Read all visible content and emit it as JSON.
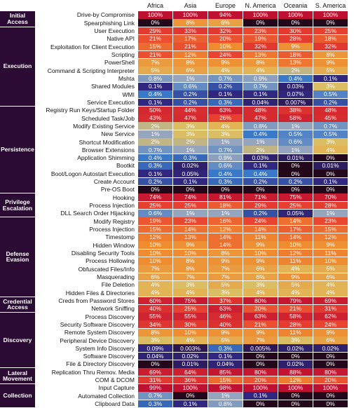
{
  "columns": [
    "Africa",
    "Asia",
    "Europe",
    "N. America",
    "Oceania",
    "S. America"
  ],
  "groups": [
    {
      "tactic": "Initial Access",
      "rows": [
        {
          "technique": "Drive-by Compromise",
          "values": [
            "100%",
            "100%",
            "94%",
            "100%",
            "100%",
            "100%"
          ]
        },
        {
          "technique": "Spearphishing Link",
          "values": [
            "0%",
            "8%",
            "6%",
            "0%",
            "0%",
            "0%"
          ]
        }
      ]
    },
    {
      "tactic": "Execution",
      "rows": [
        {
          "technique": "User Execution",
          "values": [
            "29%",
            "33%",
            "32%",
            "23%",
            "30%",
            "25%"
          ]
        },
        {
          "technique": "Native API",
          "values": [
            "21%",
            "17%",
            "20%",
            "19%",
            "28%",
            "18%"
          ]
        },
        {
          "technique": "Exploitation for Client Execution",
          "values": [
            "15%",
            "21%",
            "10%",
            "32%",
            "9%",
            "32%"
          ]
        },
        {
          "technique": "Scripting",
          "values": [
            "21%",
            "12%",
            "24%",
            "13%",
            "18%",
            "8%"
          ]
        },
        {
          "technique": "PowerShell",
          "values": [
            "7%",
            "8%",
            "9%",
            "8%",
            "13%",
            "9%"
          ]
        },
        {
          "technique": "Command & Scripting Interpreter",
          "values": [
            "5%",
            "6%",
            "4%",
            "4%",
            "2%",
            "5%"
          ]
        },
        {
          "technique": "Mshta",
          "values": [
            "0.8%",
            "1%",
            "0.7%",
            "0.9%",
            "0.4%",
            "0.1%"
          ]
        },
        {
          "technique": "Shared Modules",
          "values": [
            "0.1%",
            "0.6%",
            "0.2%",
            "0.7%",
            "0.03%",
            "3%"
          ]
        },
        {
          "technique": "WMI",
          "values": [
            "0.4%",
            "0.2%",
            "0.1%",
            "0.1%",
            "0.07%",
            "0.5%"
          ]
        },
        {
          "technique": "Service Execution",
          "values": [
            "0.1%",
            "0.2%",
            "0.3%",
            "0.04%",
            "0.007%",
            "0.2%"
          ]
        }
      ]
    },
    {
      "tactic": "Persistence",
      "rows": [
        {
          "technique": "Registry Run Keys/Startup Folder",
          "values": [
            "50%",
            "44%",
            "63%",
            "48%",
            "38%",
            "48%"
          ]
        },
        {
          "technique": "Scheduled Task/Job",
          "values": [
            "43%",
            "47%",
            "26%",
            "47%",
            "58%",
            "45%"
          ]
        },
        {
          "technique": "Modify Existing Service",
          "values": [
            "2%",
            "3%",
            "4%",
            "0.8%",
            "1%",
            "0.7%"
          ]
        },
        {
          "technique": "New Service",
          "values": [
            "1%",
            "3%",
            "3%",
            "0.4%",
            "0.5%",
            "0.5%"
          ]
        },
        {
          "technique": "Shortcut Modification",
          "values": [
            "2%",
            "2%",
            "1%",
            "1%",
            "0.6%",
            "3%"
          ]
        },
        {
          "technique": "Browser Extensions",
          "values": [
            "0.7%",
            "1%",
            "0.7%",
            "2%",
            "1%",
            "4%"
          ]
        },
        {
          "technique": "Application Shimming",
          "values": [
            "0.4%",
            "0.3%",
            "0.9%",
            "0.03%",
            "0.01%",
            "0%"
          ]
        },
        {
          "technique": "Bootkit",
          "values": [
            "0.3%",
            "0.02%",
            "0.6%",
            "0.1%",
            "0%",
            "0.01%"
          ]
        },
        {
          "technique": "Boot/Logon Autostart Execution",
          "values": [
            "0.1%",
            "0.05%",
            "0.4%",
            "0.4%",
            "0%",
            "0%"
          ]
        },
        {
          "technique": "Create Account",
          "values": [
            "0.2%",
            "0.1%",
            "0.3%",
            "0.2%",
            "0.2%",
            "0.1%"
          ]
        },
        {
          "technique": "Pre-OS Boot",
          "values": [
            "0%",
            "0%",
            "0%",
            "0%",
            "0%",
            "0%"
          ]
        }
      ]
    },
    {
      "tactic": "Privilege Escalation",
      "rows": [
        {
          "technique": "Hooking",
          "values": [
            "74%",
            "74%",
            "81%",
            "71%",
            "75%",
            "70%"
          ]
        },
        {
          "technique": "Process Injection",
          "values": [
            "25%",
            "25%",
            "18%",
            "29%",
            "25%",
            "28%"
          ]
        },
        {
          "technique": "DLL Search Order Hijacking",
          "values": [
            "0.6%",
            "1%",
            "1%",
            "0.2%",
            "0.05%",
            "1%"
          ]
        }
      ]
    },
    {
      "tactic": "Defense Evasion",
      "rows": [
        {
          "technique": "Modify Registry",
          "values": [
            "19%",
            "23%",
            "16%",
            "24%",
            "14%",
            "23%"
          ]
        },
        {
          "technique": "Process Injection",
          "values": [
            "15%",
            "14%",
            "12%",
            "14%",
            "17%",
            "15%"
          ]
        },
        {
          "technique": "Timestomp",
          "values": [
            "12%",
            "13%",
            "14%",
            "11%",
            "14%",
            "12%"
          ]
        },
        {
          "technique": "Hidden Window",
          "values": [
            "10%",
            "9%",
            "14%",
            "9%",
            "10%",
            "9%"
          ]
        },
        {
          "technique": "Disabling Security Tools",
          "values": [
            "10%",
            "10%",
            "8%",
            "10%",
            "12%",
            "11%"
          ]
        },
        {
          "technique": "Process Hollowing",
          "values": [
            "10%",
            "8%",
            "9%",
            "9%",
            "11%",
            "10%"
          ]
        },
        {
          "technique": "Obfuscated Files/Info",
          "values": [
            "7%",
            "8%",
            "7%",
            "6%",
            "4%",
            "5%"
          ]
        },
        {
          "technique": "Masquerading",
          "values": [
            "6%",
            "7%",
            "7%",
            "6%",
            "9%",
            "6%"
          ]
        },
        {
          "technique": "File Deletion",
          "values": [
            "4%",
            "3%",
            "5%",
            "3%",
            "5%",
            "4%"
          ]
        },
        {
          "technique": "Hidden Files & Directories",
          "values": [
            "4%",
            "4%",
            "3%",
            "4%",
            "4%",
            "4%"
          ]
        }
      ]
    },
    {
      "tactic": "Credential Access",
      "rows": [
        {
          "technique": "Creds from Password Stores",
          "values": [
            "60%",
            "75%",
            "37%",
            "80%",
            "79%",
            "69%"
          ]
        },
        {
          "technique": "Network Sniffing",
          "values": [
            "40%",
            "25%",
            "63%",
            "20%",
            "21%",
            "31%"
          ]
        }
      ]
    },
    {
      "tactic": "Discovery",
      "rows": [
        {
          "technique": "Process Discovery",
          "values": [
            "55%",
            "55%",
            "46%",
            "63%",
            "58%",
            "62%"
          ]
        },
        {
          "technique": "Security Software Discovery",
          "values": [
            "34%",
            "30%",
            "40%",
            "21%",
            "28%",
            "24%"
          ]
        },
        {
          "technique": "Remote System Discovery",
          "values": [
            "8%",
            "10%",
            "9%",
            "9%",
            "11%",
            "9%"
          ]
        },
        {
          "technique": "Peripheral Device Discovery",
          "values": [
            "3%",
            "4%",
            "5%",
            "7%",
            "3%",
            "6%"
          ]
        },
        {
          "technique": "System Info Discovery",
          "values": [
            "0.09%",
            "0.003%",
            "0.3%",
            "0.005%",
            "0.02%",
            "0.02%"
          ]
        },
        {
          "technique": "Software Discovery",
          "values": [
            "0.04%",
            "0.02%",
            "0.1%",
            "0%",
            "0%",
            "0%"
          ]
        },
        {
          "technique": "File & Directory Discovery",
          "values": [
            "0%",
            "0.01%",
            "0.04%",
            "0%",
            "0.02%",
            "0%"
          ]
        }
      ]
    },
    {
      "tactic": "Lateral Movement",
      "rows": [
        {
          "technique": "Replication Thru Remov. Media",
          "values": [
            "69%",
            "64%",
            "85%",
            "80%",
            "88%",
            "80%"
          ]
        },
        {
          "technique": "COM & DCOM",
          "values": [
            "31%",
            "36%",
            "15%",
            "20%",
            "12%",
            "20%"
          ]
        }
      ]
    },
    {
      "tactic": "Collection",
      "rows": [
        {
          "technique": "Input Capture",
          "values": [
            "99%",
            "100%",
            "98%",
            "100%",
            "100%",
            "100%"
          ]
        },
        {
          "technique": "Automated Collection",
          "values": [
            "0.7%",
            "0%",
            "1%",
            "0.1%",
            "0%",
            "0%"
          ]
        },
        {
          "technique": "Clipboard Data",
          "values": [
            "0.3%",
            "0.1%",
            "0.8%",
            "0%",
            "0%",
            "0%"
          ]
        }
      ]
    }
  ]
}
